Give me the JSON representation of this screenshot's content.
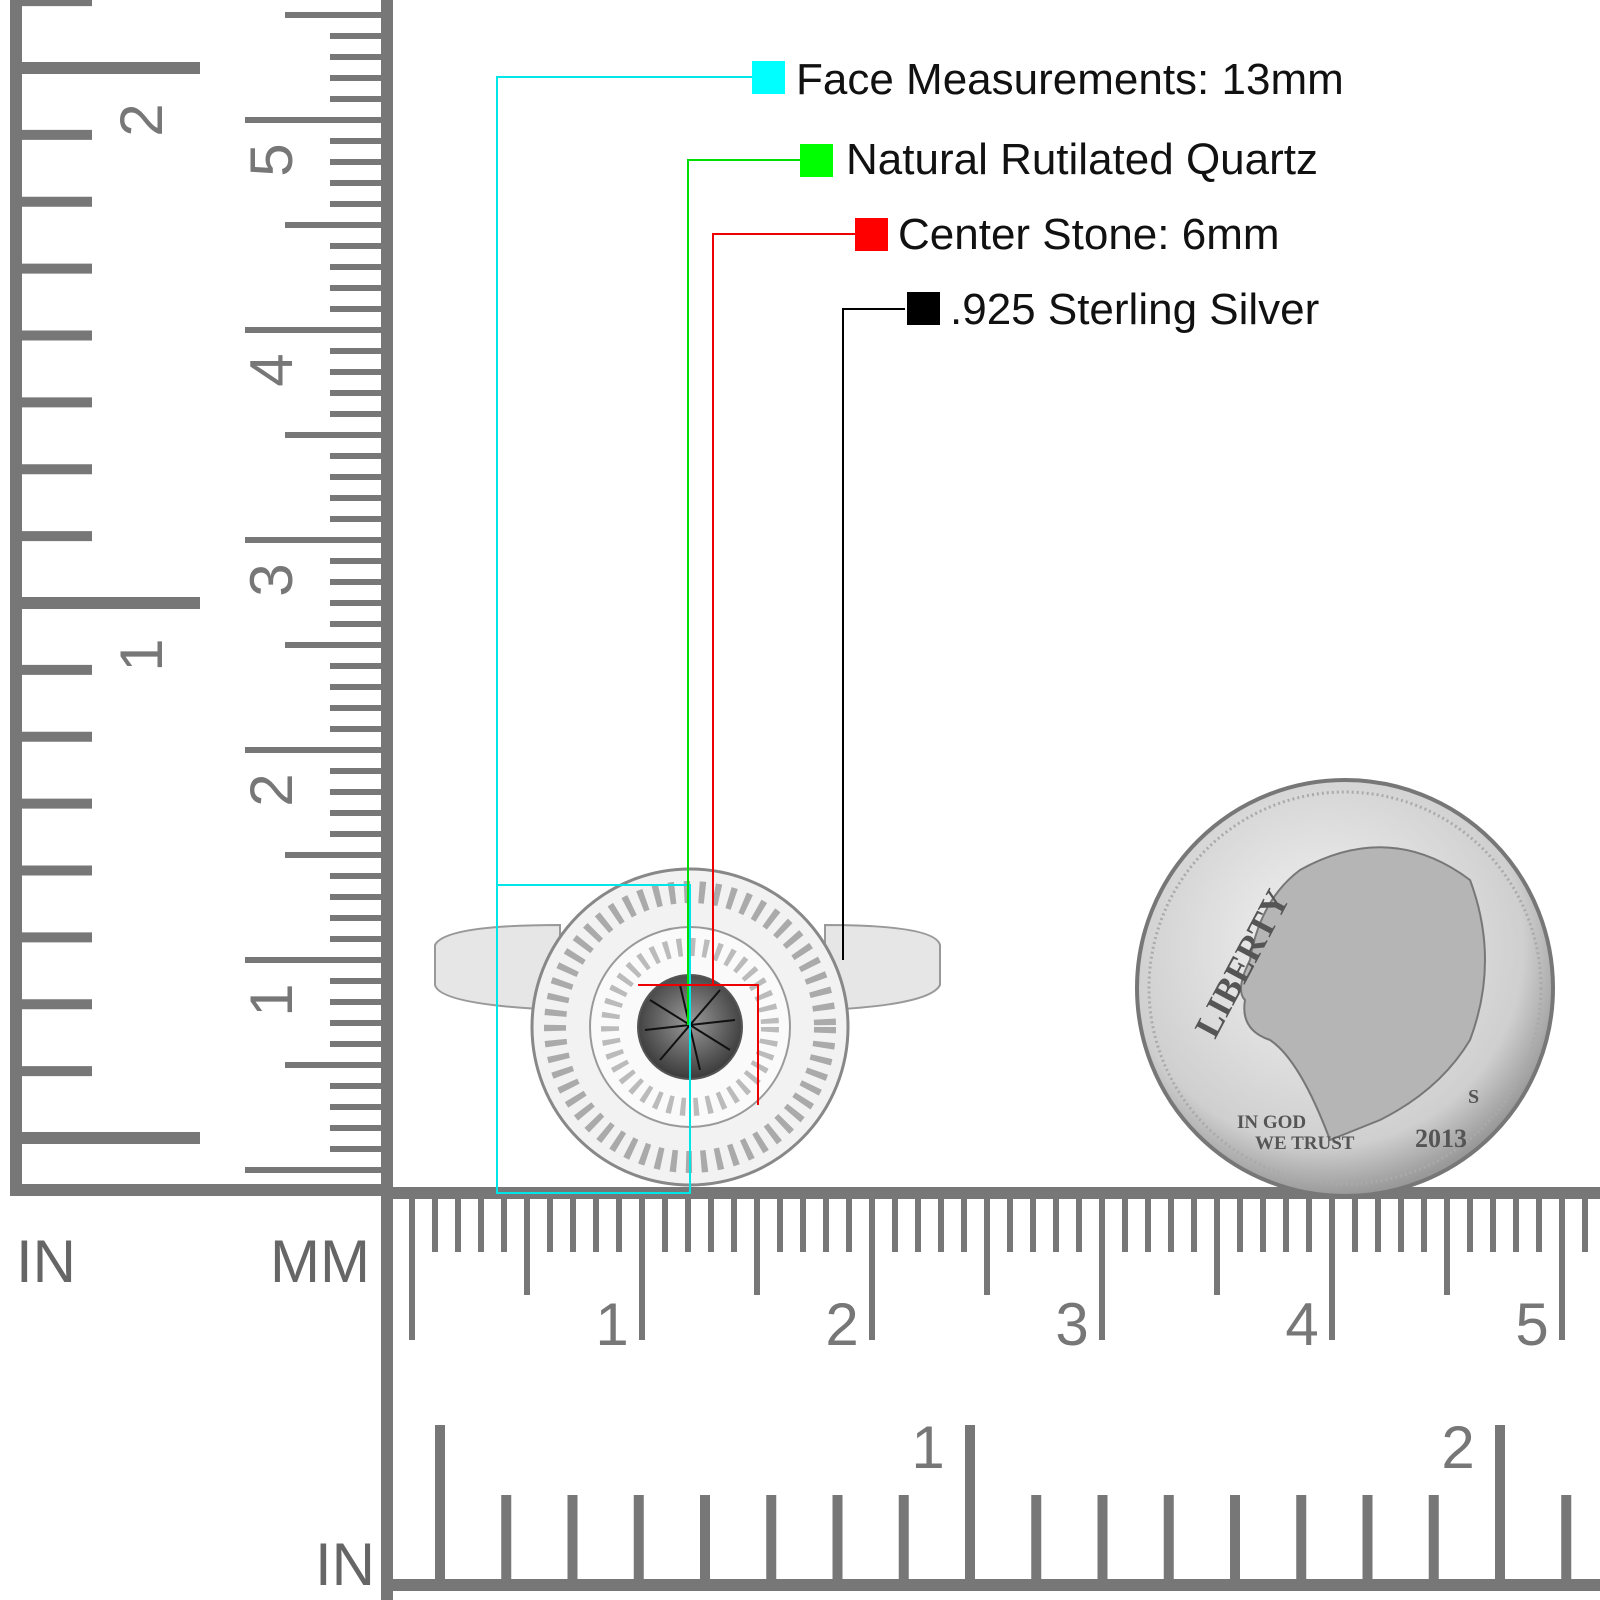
{
  "callouts": [
    {
      "text": "Face Measurements: 13mm",
      "color": "#00ffff"
    },
    {
      "text": "Natural Rutilated Quartz",
      "color": "#00ff00"
    },
    {
      "text": "Center Stone: 6mm",
      "color": "#ff0000"
    },
    {
      "text": ".925 Sterling Silver",
      "color": "#000000"
    }
  ],
  "ruler": {
    "color": "#777777",
    "left_unit_in": "IN",
    "left_unit_mm": "MM",
    "bottom_unit_in": "IN",
    "vertical_in_numbers": [
      "1",
      "2"
    ],
    "vertical_mm_numbers": [
      "1",
      "2",
      "3",
      "4",
      "5"
    ],
    "horizontal_mm_numbers": [
      "1",
      "2",
      "3",
      "4",
      "5"
    ],
    "horizontal_in_numbers": [
      "1",
      "2"
    ]
  },
  "coin": {
    "motto_top": "LIBERTY",
    "motto_bottom_1": "IN GOD",
    "motto_bottom_2": "WE TRUST",
    "year": "2013",
    "mint_mark": "S"
  }
}
